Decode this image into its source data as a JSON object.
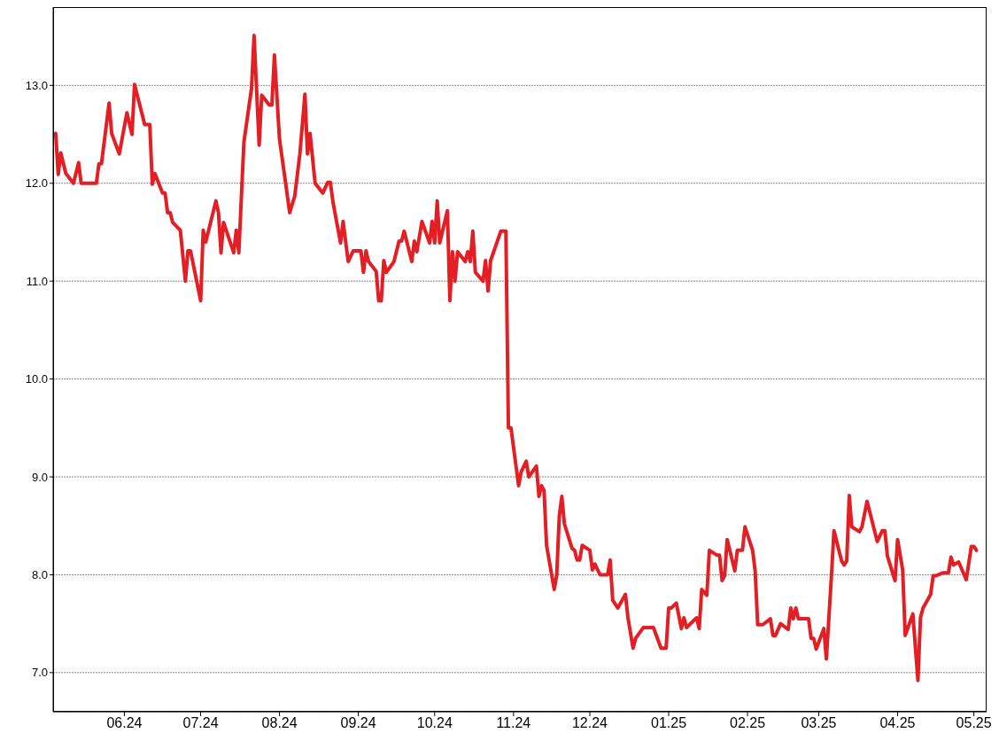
{
  "chart_data": {
    "type": "line",
    "color": "#e31e24",
    "x": [
      "2024-05-05",
      "2024-05-06",
      "2024-05-07",
      "2024-05-09",
      "2024-05-12",
      "2024-05-14",
      "2024-05-15",
      "2024-05-21",
      "2024-05-22",
      "2024-05-23",
      "2024-05-26",
      "2024-05-27",
      "2024-05-30",
      "2024-06-02",
      "2024-06-04",
      "2024-06-05",
      "2024-06-09",
      "2024-06-11",
      "2024-06-12",
      "2024-06-13",
      "2024-06-16",
      "2024-06-17",
      "2024-06-18",
      "2024-06-19",
      "2024-06-20",
      "2024-06-23",
      "2024-06-25",
      "2024-06-26",
      "2024-06-27",
      "2024-07-01",
      "2024-07-02",
      "2024-07-03",
      "2024-07-07",
      "2024-07-08",
      "2024-07-09",
      "2024-07-10",
      "2024-07-14",
      "2024-07-15",
      "2024-07-16",
      "2024-07-18",
      "2024-07-21",
      "2024-07-22",
      "2024-07-24",
      "2024-07-25",
      "2024-07-28",
      "2024-07-29",
      "2024-07-30",
      "2024-08-01",
      "2024-08-05",
      "2024-08-07",
      "2024-08-09",
      "2024-08-11",
      "2024-08-12",
      "2024-08-13",
      "2024-08-15",
      "2024-08-18",
      "2024-08-20",
      "2024-08-21",
      "2024-08-22",
      "2024-08-25",
      "2024-08-26",
      "2024-08-28",
      "2024-08-30",
      "2024-09-02",
      "2024-09-03",
      "2024-09-04",
      "2024-09-05",
      "2024-09-08",
      "2024-09-09",
      "2024-09-10",
      "2024-09-11",
      "2024-09-12",
      "2024-09-15",
      "2024-09-17",
      "2024-09-18",
      "2024-09-19",
      "2024-09-22",
      "2024-09-23",
      "2024-09-24",
      "2024-09-26",
      "2024-09-29",
      "2024-09-30",
      "2024-10-01",
      "2024-10-02",
      "2024-10-03",
      "2024-10-06",
      "2024-10-07",
      "2024-10-08",
      "2024-10-09",
      "2024-10-10",
      "2024-10-13",
      "2024-10-14",
      "2024-10-15",
      "2024-10-16",
      "2024-10-17",
      "2024-10-20",
      "2024-10-21",
      "2024-10-22",
      "2024-10-23",
      "2024-10-27",
      "2024-10-29",
      "2024-10-30",
      "2024-10-31",
      "2024-11-03",
      "2024-11-04",
      "2024-11-06",
      "2024-11-07",
      "2024-11-10",
      "2024-11-11",
      "2024-11-12",
      "2024-11-13",
      "2024-11-14",
      "2024-11-17",
      "2024-11-18",
      "2024-11-19",
      "2024-11-20",
      "2024-11-21",
      "2024-11-24",
      "2024-11-25",
      "2024-11-26",
      "2024-11-27",
      "2024-11-28",
      "2024-12-01",
      "2024-12-02",
      "2024-12-03",
      "2024-12-05",
      "2024-12-08",
      "2024-12-09",
      "2024-12-10",
      "2024-12-12",
      "2024-12-15",
      "2024-12-16",
      "2024-12-18",
      "2024-12-19",
      "2024-12-22",
      "2024-12-26",
      "2024-12-29",
      "2024-12-31",
      "2025-01-01",
      "2025-01-02",
      "2025-01-04",
      "2025-01-06",
      "2025-01-07",
      "2025-01-08",
      "2025-01-12",
      "2025-01-13",
      "2025-01-14",
      "2025-01-16",
      "2025-01-17",
      "2025-01-20",
      "2025-01-21",
      "2025-01-22",
      "2025-01-23",
      "2025-01-24",
      "2025-01-27",
      "2025-01-28",
      "2025-01-30",
      "2025-01-31",
      "2025-02-03",
      "2025-02-04",
      "2025-02-05",
      "2025-02-07",
      "2025-02-10",
      "2025-02-11",
      "2025-02-12",
      "2025-02-14",
      "2025-02-17",
      "2025-02-18",
      "2025-02-19",
      "2025-02-20",
      "2025-02-21",
      "2025-02-25",
      "2025-02-26",
      "2025-02-27",
      "2025-02-28",
      "2025-03-03",
      "2025-03-04",
      "2025-03-06",
      "2025-03-07",
      "2025-03-10",
      "2025-03-11",
      "2025-03-12",
      "2025-03-13",
      "2025-03-14",
      "2025-03-17",
      "2025-03-18",
      "2025-03-20",
      "2025-03-24",
      "2025-03-26",
      "2025-03-27",
      "2025-03-28",
      "2025-03-31",
      "2025-04-01",
      "2025-04-03",
      "2025-04-04",
      "2025-04-07",
      "2025-04-09",
      "2025-04-10",
      "2025-04-11",
      "2025-04-14",
      "2025-04-15",
      "2025-04-16",
      "2025-04-19",
      "2025-04-21",
      "2025-04-22",
      "2025-04-23",
      "2025-04-25",
      "2025-04-28",
      "2025-04-30",
      "2025-05-01",
      "2025-05-02"
    ],
    "values": [
      12.51,
      12.09,
      12.31,
      12.1,
      12.0,
      12.21,
      12.0,
      12.0,
      12.2,
      12.2,
      12.82,
      12.51,
      12.3,
      12.72,
      12.5,
      13.01,
      12.6,
      12.6,
      11.99,
      12.1,
      11.9,
      11.9,
      11.7,
      11.7,
      11.6,
      11.52,
      11.0,
      11.31,
      11.31,
      10.8,
      11.52,
      11.4,
      11.82,
      11.7,
      11.29,
      11.6,
      11.29,
      11.52,
      11.29,
      12.42,
      12.97,
      13.51,
      12.39,
      12.9,
      12.8,
      12.8,
      13.31,
      12.45,
      11.7,
      11.87,
      12.3,
      12.91,
      12.3,
      12.51,
      12.0,
      11.9,
      12.01,
      12.01,
      11.81,
      11.39,
      11.61,
      11.2,
      11.31,
      11.31,
      11.09,
      11.31,
      11.2,
      11.1,
      10.8,
      10.8,
      11.21,
      11.09,
      11.2,
      11.41,
      11.41,
      11.51,
      11.2,
      11.41,
      11.3,
      11.61,
      11.39,
      11.61,
      11.39,
      11.82,
      11.39,
      11.72,
      10.8,
      11.3,
      11.0,
      11.3,
      11.2,
      11.3,
      11.2,
      11.51,
      11.09,
      11.0,
      11.21,
      10.9,
      11.21,
      11.51,
      11.51,
      9.5,
      9.5,
      8.91,
      9.05,
      9.16,
      9.0,
      9.11,
      8.8,
      8.91,
      8.86,
      8.3,
      7.85,
      8.0,
      8.6,
      8.8,
      8.52,
      8.27,
      8.25,
      8.15,
      8.15,
      8.3,
      8.25,
      8.05,
      8.11,
      8.0,
      8.0,
      8.15,
      7.74,
      7.66,
      7.8,
      7.56,
      7.25,
      7.35,
      7.46,
      7.46,
      7.25,
      7.25,
      7.66,
      7.66,
      7.71,
      7.45,
      7.56,
      7.46,
      7.56,
      7.45,
      7.85,
      7.79,
      8.25,
      8.2,
      8.2,
      7.94,
      7.99,
      8.36,
      8.04,
      8.25,
      8.25,
      8.49,
      8.25,
      8.04,
      7.49,
      7.49,
      7.55,
      7.38,
      7.38,
      7.5,
      7.44,
      7.66,
      7.55,
      7.66,
      7.55,
      7.55,
      7.35,
      7.35,
      7.24,
      7.45,
      7.14,
      7.99,
      8.45,
      8.14,
      8.1,
      8.14,
      8.81,
      8.49,
      8.44,
      8.49,
      8.75,
      8.34,
      8.45,
      8.45,
      8.19,
      7.94,
      8.36,
      8.05,
      7.38,
      7.6,
      6.92,
      7.56,
      7.66,
      7.8,
      7.99,
      7.99,
      8.02,
      8.02,
      8.18,
      8.1,
      8.13,
      7.95,
      8.29,
      8.29,
      8.25
    ],
    "xlim": [
      "2024-05-04",
      "2025-05-06"
    ],
    "xticks": [
      {
        "value": "2024-06-01",
        "label": "06.24"
      },
      {
        "value": "2024-07-01",
        "label": "07.24"
      },
      {
        "value": "2024-08-01",
        "label": "08.24"
      },
      {
        "value": "2024-09-01",
        "label": "09.24"
      },
      {
        "value": "2024-10-01",
        "label": "10.24"
      },
      {
        "value": "2024-11-01",
        "label": "11.24"
      },
      {
        "value": "2024-12-01",
        "label": "12.24"
      },
      {
        "value": "2025-01-01",
        "label": "01.25"
      },
      {
        "value": "2025-02-01",
        "label": "02.25"
      },
      {
        "value": "2025-03-01",
        "label": "03.25"
      },
      {
        "value": "2025-04-01",
        "label": "04.25"
      },
      {
        "value": "2025-05-01",
        "label": "05.25"
      }
    ],
    "ylim": [
      6.6,
      13.8
    ],
    "yticks": [
      {
        "value": 7,
        "label": "7.0"
      },
      {
        "value": 8,
        "label": "8.0"
      },
      {
        "value": 9,
        "label": "9.0"
      },
      {
        "value": 10,
        "label": "10.0"
      },
      {
        "value": 11,
        "label": "11.0"
      },
      {
        "value": 12,
        "label": "12.0"
      },
      {
        "value": 13,
        "label": "13.0"
      }
    ],
    "grid": "y"
  }
}
